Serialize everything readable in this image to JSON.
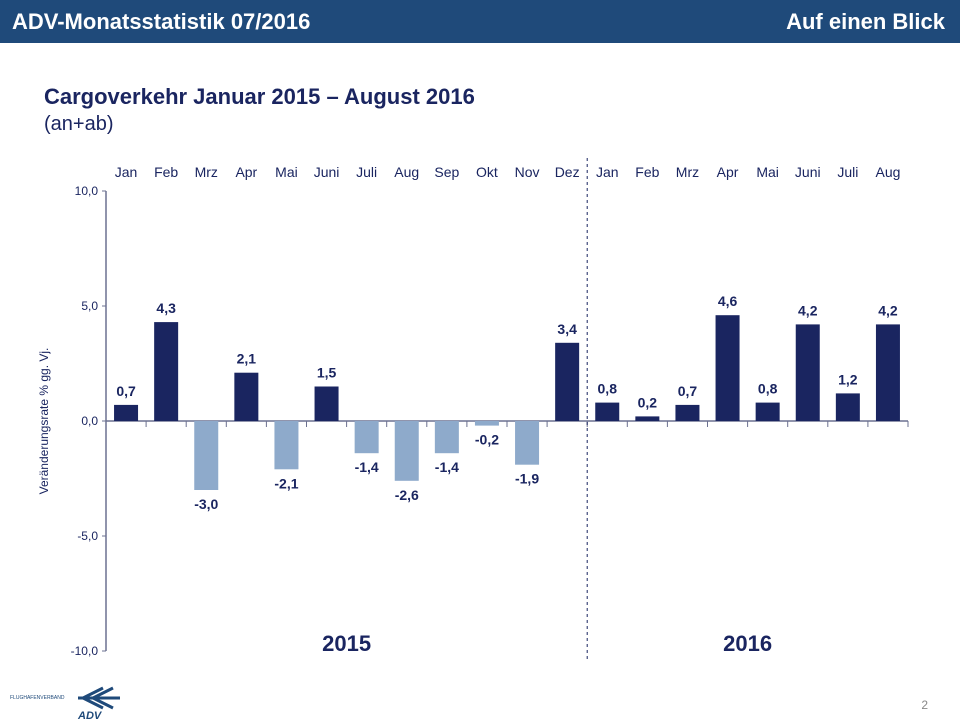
{
  "header": {
    "title": "ADV-Monatsstatistik 07/2016",
    "section": "Auf einen Blick"
  },
  "slide": {
    "title": "Cargoverkehr Januar 2015 – August 2016",
    "subtitle": "(an+ab)",
    "page_number": "2",
    "logo_text": "FLUGHAFENVERBAND ADV"
  },
  "chart_data": {
    "type": "bar",
    "categories": [
      "Jan",
      "Feb",
      "Mrz",
      "Apr",
      "Mai",
      "Juni",
      "Juli",
      "Aug",
      "Sep",
      "Okt",
      "Nov",
      "Dez",
      "Jan",
      "Feb",
      "Mrz",
      "Apr",
      "Mai",
      "Juni",
      "Juli",
      "Aug"
    ],
    "values": [
      0.7,
      4.3,
      -3.0,
      2.1,
      -2.1,
      1.5,
      -1.4,
      -2.6,
      -1.4,
      -0.2,
      -1.9,
      3.4,
      0.8,
      0.2,
      0.7,
      4.6,
      0.8,
      4.2,
      1.2,
      4.2
    ],
    "value_labels": [
      "0,7",
      "4,3",
      "-3,0",
      "2,1",
      "-2,1",
      "1,5",
      "-1,4",
      "-2,6",
      "-1,4",
      "-0,2",
      "-1,9",
      "3,4",
      "0,8",
      "0,2",
      "0,7",
      "4,6",
      "0,8",
      "4,2",
      "1,2",
      "4,2"
    ],
    "year_groups": [
      "2015",
      "2016"
    ],
    "ylabel": "Veränderungsrate  % gg. Vj.",
    "ylim": [
      -10,
      10
    ],
    "yticks": [
      10,
      5,
      0,
      -5,
      -10
    ],
    "ytick_labels": [
      "10,0",
      "5,0",
      "0,0",
      "-5,0",
      "-10,0"
    ],
    "grid": false,
    "colors": {
      "positive": "#1a2560",
      "negative": "#8eaacb",
      "axis": "#6b7090"
    }
  }
}
